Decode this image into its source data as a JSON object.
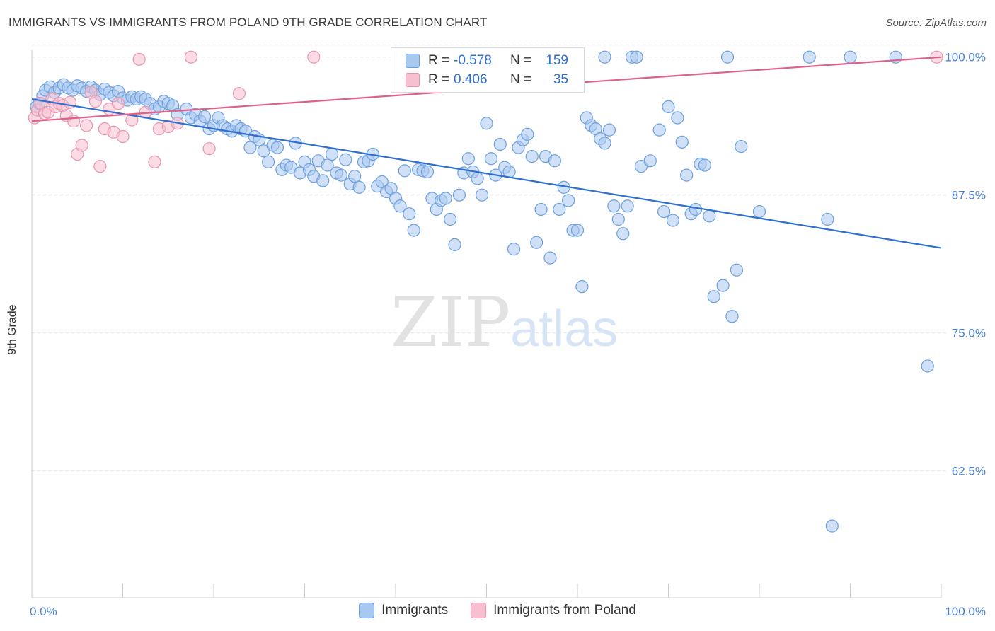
{
  "title": "IMMIGRANTS VS IMMIGRANTS FROM POLAND 9TH GRADE CORRELATION CHART",
  "source": "Source: ZipAtlas.com",
  "watermark": {
    "main": "ZIP",
    "sub": "atlas"
  },
  "legend": {
    "rows": [
      {
        "r_label": "R =",
        "r_value": "-0.578",
        "n_label": "N =",
        "n_value": "159",
        "color": "#a9c8f0",
        "border": "#6d9fe0"
      },
      {
        "r_label": "R =",
        "r_value": "0.406",
        "n_label": "N =",
        "n_value": "35",
        "color": "#f8bfd0",
        "border": "#e896b0"
      }
    ]
  },
  "bottom_legend": [
    "Immigrants",
    "Immigrants from Poland"
  ],
  "chart_data": {
    "type": "scatter",
    "title": "IMMIGRANTS VS IMMIGRANTS FROM POLAND 9TH GRADE CORRELATION CHART",
    "xlabel": "",
    "ylabel": "9th Grade",
    "xlim": [
      0,
      100
    ],
    "ylim": [
      51,
      101.2
    ],
    "x_tick_labels": [
      "0.0%",
      "100.0%"
    ],
    "y_ticks": [
      62.5,
      75.0,
      87.5,
      100.0
    ],
    "y_tick_labels": [
      "62.5%",
      "75.0%",
      "87.5%",
      "100.0%"
    ],
    "grid": true,
    "legend_position": "top-center",
    "series": [
      {
        "name": "Immigrants",
        "color": "#a9c8f0",
        "edge_color": "#6d9fe0",
        "trend_color": "#2f6fd0",
        "trend": {
          "x": [
            0,
            100
          ],
          "y": [
            96.2,
            82.7
          ]
        },
        "points": [
          [
            0.5,
            95.5
          ],
          [
            0.8,
            95.8
          ],
          [
            1.2,
            96.5
          ],
          [
            1.5,
            97
          ],
          [
            2,
            97.3
          ],
          [
            2.5,
            96.8
          ],
          [
            3,
            97.2
          ],
          [
            3.5,
            97.5
          ],
          [
            4,
            97.2
          ],
          [
            4.5,
            97
          ],
          [
            5,
            97.4
          ],
          [
            5.5,
            97.2
          ],
          [
            6,
            96.9
          ],
          [
            6.5,
            97.3
          ],
          [
            7,
            97
          ],
          [
            7.5,
            96.6
          ],
          [
            8,
            97.1
          ],
          [
            8.5,
            96.8
          ],
          [
            9,
            96.5
          ],
          [
            9.5,
            96.9
          ],
          [
            10,
            96.3
          ],
          [
            10.5,
            96.1
          ],
          [
            11,
            96.4
          ],
          [
            11.5,
            96.2
          ],
          [
            12,
            96.4
          ],
          [
            12.5,
            96.2
          ],
          [
            13,
            95.8
          ],
          [
            13.5,
            95.3
          ],
          [
            14,
            95.5
          ],
          [
            14.5,
            96
          ],
          [
            15,
            95.8
          ],
          [
            15.5,
            95.6
          ],
          [
            16,
            94.8
          ],
          [
            17,
            95.3
          ],
          [
            17.5,
            94.5
          ],
          [
            18,
            94.8
          ],
          [
            18.5,
            94.2
          ],
          [
            19,
            94.6
          ],
          [
            19.5,
            93.5
          ],
          [
            20,
            93.8
          ],
          [
            20.5,
            94.5
          ],
          [
            21,
            93.8
          ],
          [
            21.5,
            93.5
          ],
          [
            22,
            93.3
          ],
          [
            22.5,
            93.8
          ],
          [
            23,
            93.5
          ],
          [
            23.5,
            93.3
          ],
          [
            24,
            91.8
          ],
          [
            24.5,
            92.8
          ],
          [
            25,
            92.5
          ],
          [
            25.5,
            91.5
          ],
          [
            26,
            90.5
          ],
          [
            26.5,
            92
          ],
          [
            27,
            91.8
          ],
          [
            27.5,
            89.8
          ],
          [
            28,
            90.2
          ],
          [
            28.5,
            90
          ],
          [
            29,
            92.2
          ],
          [
            29.5,
            89.5
          ],
          [
            30,
            90.5
          ],
          [
            30.5,
            89.8
          ],
          [
            31,
            89.2
          ],
          [
            31.5,
            90.6
          ],
          [
            32,
            88.8
          ],
          [
            32.5,
            90.2
          ],
          [
            33,
            91.2
          ],
          [
            33.5,
            89.5
          ],
          [
            34,
            89.3
          ],
          [
            34.5,
            90.7
          ],
          [
            35,
            88.5
          ],
          [
            35.5,
            89.2
          ],
          [
            36,
            88.2
          ],
          [
            36.5,
            90.5
          ],
          [
            37,
            90.6
          ],
          [
            37.5,
            91.2
          ],
          [
            38,
            88.3
          ],
          [
            38.5,
            88.7
          ],
          [
            39,
            87.8
          ],
          [
            39.5,
            88.1
          ],
          [
            40,
            87.2
          ],
          [
            40.5,
            86.5
          ],
          [
            41,
            89.7
          ],
          [
            41.5,
            85.8
          ],
          [
            42,
            84.3
          ],
          [
            42.5,
            89.8
          ],
          [
            43,
            89.7
          ],
          [
            43.5,
            89.6
          ],
          [
            44,
            87.2
          ],
          [
            44.5,
            86.2
          ],
          [
            45,
            87
          ],
          [
            45.5,
            87.2
          ],
          [
            46,
            85.3
          ],
          [
            46.5,
            83
          ],
          [
            47,
            87.5
          ],
          [
            47.5,
            89.5
          ],
          [
            48,
            90.8
          ],
          [
            48.5,
            89.6
          ],
          [
            49,
            89
          ],
          [
            49.5,
            87.5
          ],
          [
            50,
            94
          ],
          [
            50.5,
            90.8
          ],
          [
            51,
            89.3
          ],
          [
            51.5,
            92.1
          ],
          [
            52,
            90
          ],
          [
            52.5,
            89.6
          ],
          [
            53,
            82.6
          ],
          [
            53.5,
            91.8
          ],
          [
            54,
            92.5
          ],
          [
            54.5,
            93
          ],
          [
            55,
            91
          ],
          [
            55.5,
            83.2
          ],
          [
            56,
            86.2
          ],
          [
            56.5,
            91
          ],
          [
            57,
            81.8
          ],
          [
            57.5,
            90.6
          ],
          [
            58,
            86.2
          ],
          [
            58.5,
            88.2
          ],
          [
            59,
            87
          ],
          [
            59.5,
            84.3
          ],
          [
            60,
            84.3
          ],
          [
            60.5,
            79.2
          ],
          [
            61,
            94.5
          ],
          [
            61.5,
            93.8
          ],
          [
            62,
            93.5
          ],
          [
            62.5,
            92.6
          ],
          [
            63,
            92.2
          ],
          [
            63.5,
            93.4
          ],
          [
            64,
            86.5
          ],
          [
            64.5,
            85.3
          ],
          [
            65,
            84
          ],
          [
            65.5,
            86.5
          ],
          [
            66,
            100
          ],
          [
            67,
            90.1
          ],
          [
            68,
            90.6
          ],
          [
            69,
            93.4
          ],
          [
            69.5,
            86
          ],
          [
            70,
            95.5
          ],
          [
            70.5,
            85.2
          ],
          [
            71,
            94.5
          ],
          [
            71.5,
            92.3
          ],
          [
            72,
            89.3
          ],
          [
            72.5,
            85.8
          ],
          [
            73,
            86.2
          ],
          [
            73.5,
            90.3
          ],
          [
            74,
            90.2
          ],
          [
            74.5,
            85.6
          ],
          [
            75,
            78.3
          ],
          [
            76,
            79.3
          ],
          [
            77,
            76.5
          ],
          [
            77.5,
            80.7
          ],
          [
            78,
            91.9
          ],
          [
            80,
            86
          ],
          [
            85.5,
            100
          ],
          [
            87.5,
            85.3
          ],
          [
            90,
            100
          ],
          [
            95,
            100
          ],
          [
            98.5,
            72
          ],
          [
            88,
            57.5
          ],
          [
            76.5,
            100
          ],
          [
            60,
            100
          ],
          [
            66.5,
            100
          ],
          [
            63,
            100
          ]
        ]
      },
      {
        "name": "Immigrants from Poland",
        "color": "#f8bfd0",
        "edge_color": "#e896b0",
        "trend_color": "#e0608a",
        "trend": {
          "x": [
            0,
            100
          ],
          "y": [
            94.2,
            100
          ]
        },
        "points": [
          [
            0.3,
            94.5
          ],
          [
            0.6,
            95.2
          ],
          [
            1,
            95.8
          ],
          [
            1.4,
            94.9
          ],
          [
            1.8,
            95
          ],
          [
            2.2,
            96.2
          ],
          [
            2.6,
            95.5
          ],
          [
            3,
            95.8
          ],
          [
            3.4,
            95.6
          ],
          [
            3.8,
            94.7
          ],
          [
            4.2,
            95.9
          ],
          [
            4.6,
            94.2
          ],
          [
            5,
            91.2
          ],
          [
            5.5,
            92
          ],
          [
            6,
            93.8
          ],
          [
            6.5,
            96.8
          ],
          [
            7,
            96
          ],
          [
            7.5,
            90.1
          ],
          [
            8,
            93.5
          ],
          [
            8.5,
            95.3
          ],
          [
            9,
            93.2
          ],
          [
            9.5,
            95.8
          ],
          [
            10,
            92.8
          ],
          [
            11,
            94.3
          ],
          [
            11.8,
            99.8
          ],
          [
            12.5,
            95
          ],
          [
            13.5,
            90.5
          ],
          [
            14,
            93.5
          ],
          [
            15,
            93.7
          ],
          [
            16,
            94
          ],
          [
            17.5,
            100
          ],
          [
            19.5,
            91.7
          ],
          [
            22.8,
            96.7
          ],
          [
            31,
            100
          ],
          [
            99.5,
            100
          ]
        ]
      }
    ]
  }
}
